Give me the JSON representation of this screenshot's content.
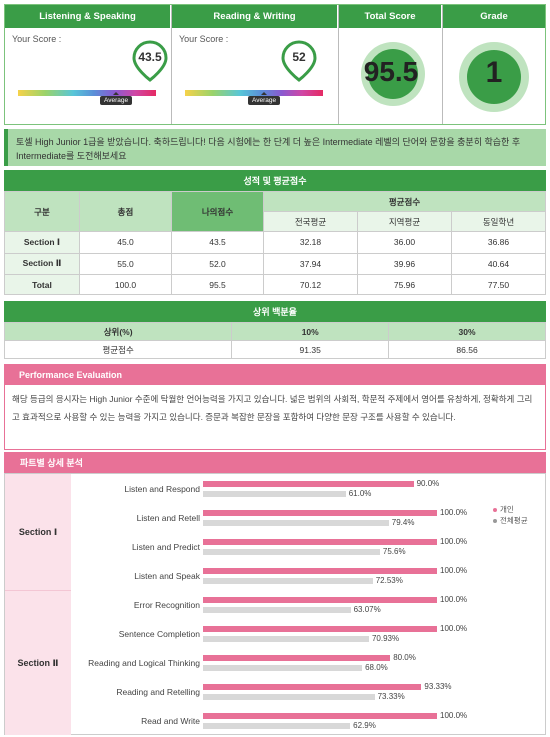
{
  "cards": {
    "ls": {
      "title": "Listening & Speaking",
      "your_score_label": "Your Score :",
      "score": "43.5",
      "avg_label": "Average"
    },
    "rw": {
      "title": "Reading & Writing",
      "your_score_label": "Your Score :",
      "score": "52",
      "avg_label": "Average"
    },
    "total": {
      "title": "Total Score",
      "score": "95.5"
    },
    "grade": {
      "title": "Grade",
      "value": "1"
    }
  },
  "message": "토셀 High Junior 1급을 받았습니다. 축하드립니다! 다음 시험에는 한 단계 더 높은 Intermediate 레벨의 단어와 문항을 충분히 학습한 후 Intermediate를 도전해보세요",
  "score_table": {
    "title": "성적 및 평균점수",
    "headers": {
      "category": "구분",
      "total": "총점",
      "my_score": "나의점수",
      "avg": "평균점수",
      "national": "전국평균",
      "regional": "지역평균",
      "same_grade": "동일학년"
    },
    "rows": [
      {
        "label": "Section Ⅰ",
        "total": "45.0",
        "my": "43.5",
        "national": "32.18",
        "regional": "36.00",
        "grade": "36.86"
      },
      {
        "label": "Section Ⅱ",
        "total": "55.0",
        "my": "52.0",
        "national": "37.94",
        "regional": "39.96",
        "grade": "40.64"
      },
      {
        "label": "Total",
        "total": "100.0",
        "my": "95.5",
        "national": "70.12",
        "regional": "75.96",
        "grade": "77.50"
      }
    ]
  },
  "percentile": {
    "title": "상위 백분율",
    "headers": [
      "상위(%)",
      "10%",
      "30%"
    ],
    "row": [
      "평균점수",
      "91.35",
      "86.56"
    ]
  },
  "performance": {
    "title": "Performance Evaluation",
    "text": "해당 등급의 응시자는 High Junior 수준에 탁월한 언어능력을 가지고 있습니다. 넓은 범위의 사회적, 학문적 주제에서 영어를 유창하게, 정확하게 그리고 효과적으로 사용할 수 있는 능력을 가지고 있습니다. 증문과 복잡한 문장을 포함하여 다양한 문장 구조를 사용할 수 있습니다."
  },
  "detail": {
    "title": "파트별 상세 분석",
    "legend": {
      "mine": "개인",
      "all": "전체평균"
    },
    "colors": {
      "mine": "#e87197",
      "all": "#d8d8d8"
    },
    "sections": [
      {
        "name": "Section Ⅰ",
        "parts": [
          {
            "label": "Listen and Respond",
            "mine": 90.0,
            "mine_text": "90.0%",
            "all": 61.0,
            "all_text": "61.0%"
          },
          {
            "label": "Listen and Retell",
            "mine": 100.0,
            "mine_text": "100.0%",
            "all": 79.4,
            "all_text": "79.4%"
          },
          {
            "label": "Listen and Predict",
            "mine": 100.0,
            "mine_text": "100.0%",
            "all": 75.6,
            "all_text": "75.6%"
          },
          {
            "label": "Listen and Speak",
            "mine": 100.0,
            "mine_text": "100.0%",
            "all": 72.53,
            "all_text": "72.53%"
          }
        ]
      },
      {
        "name": "Section Ⅱ",
        "parts": [
          {
            "label": "Error Recognition",
            "mine": 100.0,
            "mine_text": "100.0%",
            "all": 63.07,
            "all_text": "63.07%"
          },
          {
            "label": "Sentence Completion",
            "mine": 100.0,
            "mine_text": "100.0%",
            "all": 70.93,
            "all_text": "70.93%"
          },
          {
            "label": "Reading and Logical Thinking",
            "mine": 80.0,
            "mine_text": "80.0%",
            "all": 68.0,
            "all_text": "68.0%"
          },
          {
            "label": "Reading and Retelling",
            "mine": 93.33,
            "mine_text": "93.33%",
            "all": 73.33,
            "all_text": "73.33%"
          },
          {
            "label": "Read and Write",
            "mine": 100.0,
            "mine_text": "100.0%",
            "all": 62.9,
            "all_text": "62.9%"
          }
        ]
      }
    ]
  }
}
